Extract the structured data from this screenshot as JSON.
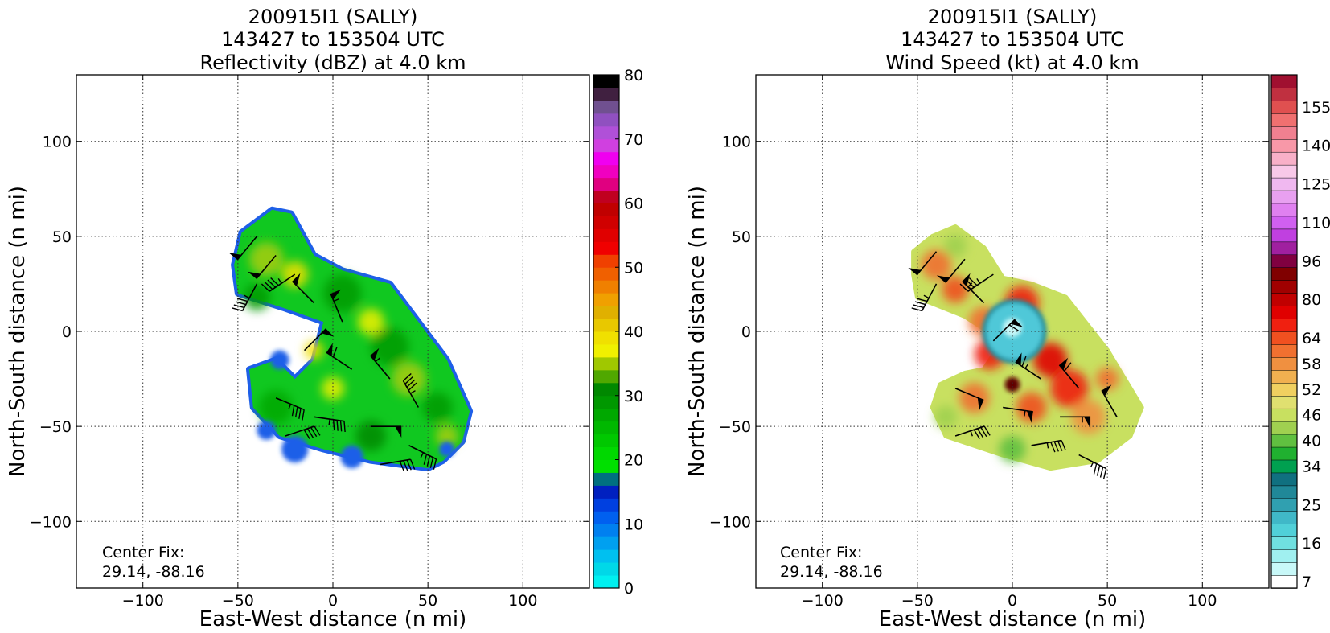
{
  "chart_data": [
    {
      "type": "heatmap",
      "title_lines": [
        "200915I1 (SALLY)",
        "143427 to 153504 UTC",
        "Reflectivity (dBZ) at 4.0 km"
      ],
      "xlabel": "East-West distance (n mi)",
      "ylabel": "North-South distance (n mi)",
      "xlim": [
        -135,
        135
      ],
      "ylim": [
        -135,
        135
      ],
      "xticks": [
        -100,
        -50,
        0,
        50,
        100
      ],
      "yticks": [
        -100,
        -50,
        0,
        50,
        100
      ],
      "xtick_labels": [
        "−100",
        "−50",
        "0",
        "50",
        "100"
      ],
      "ytick_labels": [
        "−100",
        "−50",
        "0",
        "50",
        "100"
      ],
      "grid": true,
      "annotation_lines": [
        "Center Fix:",
        "29.14, -88.16"
      ],
      "colorbar": {
        "min": 0,
        "max": 80,
        "tick_values": [
          0,
          10,
          20,
          30,
          40,
          50,
          60,
          70,
          80
        ],
        "tick_labels": [
          "0",
          "10",
          "20",
          "30",
          "40",
          "50",
          "60",
          "70",
          "80"
        ],
        "colors": [
          "#00f0f0",
          "#00d8e8",
          "#00c0f0",
          "#00a0f0",
          "#0080f0",
          "#0060f0",
          "#0040e0",
          "#0020c0",
          "#007080",
          "#00e000",
          "#00d800",
          "#00c800",
          "#00b800",
          "#00a800",
          "#009800",
          "#008800",
          "#50a800",
          "#a0c800",
          "#f0f000",
          "#f0e000",
          "#e8c800",
          "#e0b000",
          "#f0a000",
          "#f08000",
          "#f06000",
          "#f04000",
          "#f00000",
          "#e00000",
          "#d00000",
          "#c00000",
          "#c00020",
          "#e00080",
          "#f000c0",
          "#f000f0",
          "#d040e0",
          "#b050d8",
          "#9050c0",
          "#705090",
          "#402040",
          "#000000"
        ]
      },
      "echo_region": {
        "polygon": [
          [
            -48,
            52
          ],
          [
            -40,
            58
          ],
          [
            -32,
            64
          ],
          [
            -22,
            62
          ],
          [
            -10,
            40
          ],
          [
            5,
            32
          ],
          [
            30,
            25
          ],
          [
            60,
            -15
          ],
          [
            72,
            -42
          ],
          [
            68,
            -58
          ],
          [
            58,
            -68
          ],
          [
            50,
            -72
          ],
          [
            20,
            -68
          ],
          [
            -5,
            -62
          ],
          [
            -28,
            -55
          ],
          [
            -42,
            -40
          ],
          [
            -44,
            -20
          ],
          [
            -30,
            -15
          ],
          [
            -20,
            -25
          ],
          [
            -10,
            -15
          ],
          [
            -5,
            5
          ],
          [
            -25,
            12
          ],
          [
            -50,
            20
          ],
          [
            -52,
            35
          ]
        ],
        "dominant_dbz": [
          20,
          35
        ],
        "edge_dbz": [
          5,
          15
        ]
      },
      "barbs": [
        {
          "x": -40,
          "y": 50,
          "u": 10,
          "v": 12,
          "speed": 50
        },
        {
          "x": -30,
          "y": 40,
          "u": 10,
          "v": 12,
          "speed": 50
        },
        {
          "x": -20,
          "y": 30,
          "u": 12,
          "v": 8,
          "speed": 45
        },
        {
          "x": -40,
          "y": 25,
          "u": 8,
          "v": 15,
          "speed": 45
        },
        {
          "x": -10,
          "y": 15,
          "u": 8,
          "v": -8,
          "speed": 50
        },
        {
          "x": 5,
          "y": 5,
          "u": 5,
          "v": -12,
          "speed": 55
        },
        {
          "x": -15,
          "y": -10,
          "u": -10,
          "v": -10,
          "speed": 50
        },
        {
          "x": 10,
          "y": -20,
          "u": 12,
          "v": -8,
          "speed": 60
        },
        {
          "x": 30,
          "y": -25,
          "u": 10,
          "v": -12,
          "speed": 55
        },
        {
          "x": 45,
          "y": -40,
          "u": 8,
          "v": -14,
          "speed": 45
        },
        {
          "x": -30,
          "y": -35,
          "u": -12,
          "v": 5,
          "speed": 45
        },
        {
          "x": -10,
          "y": -45,
          "u": -14,
          "v": 2,
          "speed": 45
        },
        {
          "x": 20,
          "y": -50,
          "u": -14,
          "v": 0,
          "speed": 50
        },
        {
          "x": 40,
          "y": -60,
          "u": -10,
          "v": 5,
          "speed": 45
        },
        {
          "x": -25,
          "y": -55,
          "u": -12,
          "v": -4,
          "speed": 40
        },
        {
          "x": 25,
          "y": -70,
          "u": -12,
          "v": -2,
          "speed": 40
        }
      ]
    },
    {
      "type": "heatmap",
      "title_lines": [
        "200915I1 (SALLY)",
        "143427 to 153504 UTC",
        "Wind Speed (kt) at 4.0 km"
      ],
      "xlabel": "East-West distance (n mi)",
      "ylabel": "North-South distance (n mi)",
      "xlim": [
        -135,
        135
      ],
      "ylim": [
        -135,
        135
      ],
      "xticks": [
        -100,
        -50,
        0,
        50,
        100
      ],
      "yticks": [
        -100,
        -50,
        0,
        50,
        100
      ],
      "xtick_labels": [
        "−100",
        "−50",
        "0",
        "50",
        "100"
      ],
      "ytick_labels": [
        "−100",
        "−50",
        "0",
        "50",
        "100"
      ],
      "grid": true,
      "annotation_lines": [
        "Center Fix:",
        "29.14, -88.16"
      ],
      "colorbar": {
        "tick_labels": [
          "7",
          "16",
          "25",
          "34",
          "40",
          "46",
          "52",
          "58",
          "64",
          "80",
          "96",
          "110",
          "125",
          "140",
          "155"
        ],
        "tick_bin_index": [
          0,
          3,
          6,
          9,
          11,
          13,
          15,
          17,
          19,
          22,
          25,
          28,
          31,
          34,
          37
        ],
        "colors": [
          "#ffffff",
          "#c8f8f8",
          "#a0f0f0",
          "#70e0e0",
          "#50d0d8",
          "#40b8c8",
          "#30a0b0",
          "#208898",
          "#107080",
          "#00a050",
          "#20b030",
          "#60c040",
          "#a0d050",
          "#c8e060",
          "#e0e070",
          "#f0d060",
          "#f0b050",
          "#f09040",
          "#f07030",
          "#f05020",
          "#f02010",
          "#e00000",
          "#c00000",
          "#a00000",
          "#800000",
          "#800040",
          "#a020a0",
          "#c040e0",
          "#d060f0",
          "#e080f0",
          "#e8a0f0",
          "#f0b8f0",
          "#f8c8e8",
          "#f8b0c8",
          "#f898a8",
          "#f08090",
          "#f07070",
          "#e05050",
          "#c03040",
          "#a01030"
        ]
      },
      "eye": {
        "x": 0,
        "y": 0,
        "radius_nmi": 15,
        "speed_kt": [
          10,
          25
        ]
      },
      "max_wind": {
        "x": 0,
        "y": -28,
        "speed_kt": 70
      },
      "wind_region": {
        "polygon": [
          [
            -52,
            42
          ],
          [
            -42,
            50
          ],
          [
            -30,
            55
          ],
          [
            -15,
            44
          ],
          [
            -5,
            28
          ],
          [
            10,
            25
          ],
          [
            28,
            18
          ],
          [
            50,
            -10
          ],
          [
            68,
            -40
          ],
          [
            62,
            -55
          ],
          [
            45,
            -68
          ],
          [
            20,
            -72
          ],
          [
            -5,
            -65
          ],
          [
            -35,
            -55
          ],
          [
            -42,
            -40
          ],
          [
            -38,
            -28
          ],
          [
            -25,
            -22
          ],
          [
            -15,
            -20
          ],
          [
            -5,
            -5
          ],
          [
            -25,
            8
          ],
          [
            -50,
            18
          ],
          [
            -52,
            30
          ]
        ],
        "dominant_speed_kt": [
          40,
          60
        ]
      },
      "barbs": [
        {
          "x": -40,
          "y": 42,
          "u": 10,
          "v": 12,
          "speed": 50
        },
        {
          "x": -25,
          "y": 38,
          "u": 10,
          "v": 12,
          "speed": 50
        },
        {
          "x": -10,
          "y": 30,
          "u": 12,
          "v": 8,
          "speed": 45
        },
        {
          "x": -40,
          "y": 25,
          "u": 8,
          "v": 15,
          "speed": 45
        },
        {
          "x": -15,
          "y": 15,
          "u": 8,
          "v": -8,
          "speed": 55
        },
        {
          "x": -10,
          "y": -5,
          "u": -10,
          "v": -10,
          "speed": 60
        },
        {
          "x": 15,
          "y": -25,
          "u": 12,
          "v": -8,
          "speed": 65
        },
        {
          "x": 35,
          "y": -30,
          "u": 10,
          "v": -12,
          "speed": 60
        },
        {
          "x": 55,
          "y": -45,
          "u": 8,
          "v": -14,
          "speed": 50
        },
        {
          "x": -30,
          "y": -30,
          "u": -12,
          "v": 5,
          "speed": 50
        },
        {
          "x": -5,
          "y": -40,
          "u": -14,
          "v": 2,
          "speed": 55
        },
        {
          "x": 25,
          "y": -45,
          "u": -14,
          "v": 0,
          "speed": 55
        },
        {
          "x": -30,
          "y": -55,
          "u": -12,
          "v": -4,
          "speed": 45
        },
        {
          "x": 10,
          "y": -60,
          "u": -12,
          "v": -2,
          "speed": 45
        },
        {
          "x": 35,
          "y": -65,
          "u": -10,
          "v": 5,
          "speed": 45
        }
      ]
    }
  ]
}
